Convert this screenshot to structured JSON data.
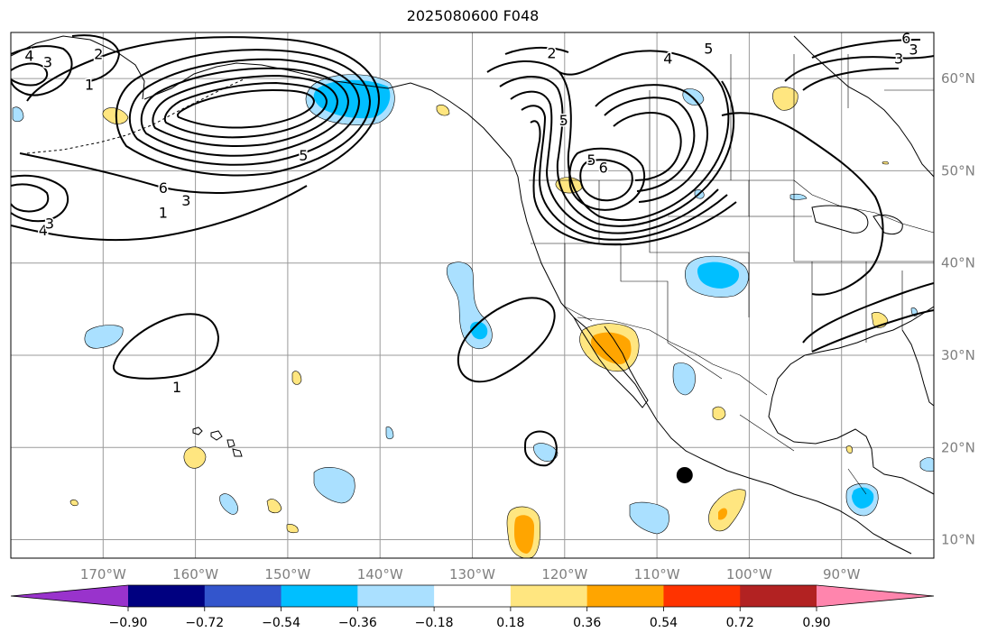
{
  "title": "2025080600 F048",
  "map": {
    "projection": "PlateCarree",
    "lon_range": [
      -180,
      -80
    ],
    "lat_range": [
      8,
      65
    ],
    "lon_ticks": [
      {
        "value": -170,
        "label": "170°W"
      },
      {
        "value": -160,
        "label": "160°W"
      },
      {
        "value": -150,
        "label": "150°W"
      },
      {
        "value": -140,
        "label": "140°W"
      },
      {
        "value": -130,
        "label": "130°W"
      },
      {
        "value": -120,
        "label": "120°W"
      },
      {
        "value": -110,
        "label": "110°W"
      },
      {
        "value": -100,
        "label": "100°W"
      },
      {
        "value": -90,
        "label": "90°W"
      }
    ],
    "lat_ticks": [
      {
        "value": 60,
        "label": "60°N"
      },
      {
        "value": 50,
        "label": "50°N"
      },
      {
        "value": 40,
        "label": "40°N"
      },
      {
        "value": 30,
        "label": "30°N"
      },
      {
        "value": 20,
        "label": "20°N"
      },
      {
        "value": 10,
        "label": "10°N"
      }
    ],
    "grid": true,
    "marker": {
      "lon": -107,
      "lat": 17,
      "color": "#000000"
    }
  },
  "colorbar": {
    "orientation": "horizontal",
    "extend": "both",
    "boundaries": [
      -0.9,
      -0.72,
      -0.54,
      -0.36,
      -0.18,
      0.18,
      0.36,
      0.54,
      0.72,
      0.9
    ],
    "colors": [
      "#9933cc",
      "#000080",
      "#3355cc",
      "#00bfff",
      "#aae0ff",
      "#ffffff",
      "#ffe680",
      "#ffa500",
      "#ff3300",
      "#b22222",
      "#ff85ad"
    ],
    "tick_labels": [
      "−0.90",
      "−0.72",
      "−0.54",
      "−0.36",
      "−0.18",
      "0.18",
      "0.36",
      "0.54",
      "0.72",
      "0.90"
    ]
  },
  "contours": {
    "color": "#000000",
    "labels": [
      {
        "text": "4",
        "lon": -178,
        "lat": 62.5
      },
      {
        "text": "3",
        "lon": -176,
        "lat": 61.8
      },
      {
        "text": "2",
        "lon": -170.5,
        "lat": 62.7
      },
      {
        "text": "1",
        "lon": -171.5,
        "lat": 59.4
      },
      {
        "text": "6",
        "lon": -163.5,
        "lat": 48.2
      },
      {
        "text": "3",
        "lon": -161,
        "lat": 46.8
      },
      {
        "text": "1",
        "lon": -163.5,
        "lat": 45.5
      },
      {
        "text": "5",
        "lon": -148.3,
        "lat": 51.7
      },
      {
        "text": "4",
        "lon": -176.5,
        "lat": 43.6
      },
      {
        "text": "3",
        "lon": -175.8,
        "lat": 44.3
      },
      {
        "text": "1",
        "lon": -162,
        "lat": 26.6
      },
      {
        "text": "2",
        "lon": -121.4,
        "lat": 62.8
      },
      {
        "text": "5",
        "lon": -104.4,
        "lat": 63.3
      },
      {
        "text": "4",
        "lon": -108.8,
        "lat": 62.2
      },
      {
        "text": "5",
        "lon": -120.1,
        "lat": 55.5
      },
      {
        "text": "5",
        "lon": -117.1,
        "lat": 51.2
      },
      {
        "text": "6",
        "lon": -115.8,
        "lat": 50.4
      },
      {
        "text": "6",
        "lon": -83,
        "lat": 64.4
      },
      {
        "text": "3",
        "lon": -82.2,
        "lat": 63.2
      },
      {
        "text": "3",
        "lon": -83.8,
        "lat": 62.2
      }
    ]
  }
}
